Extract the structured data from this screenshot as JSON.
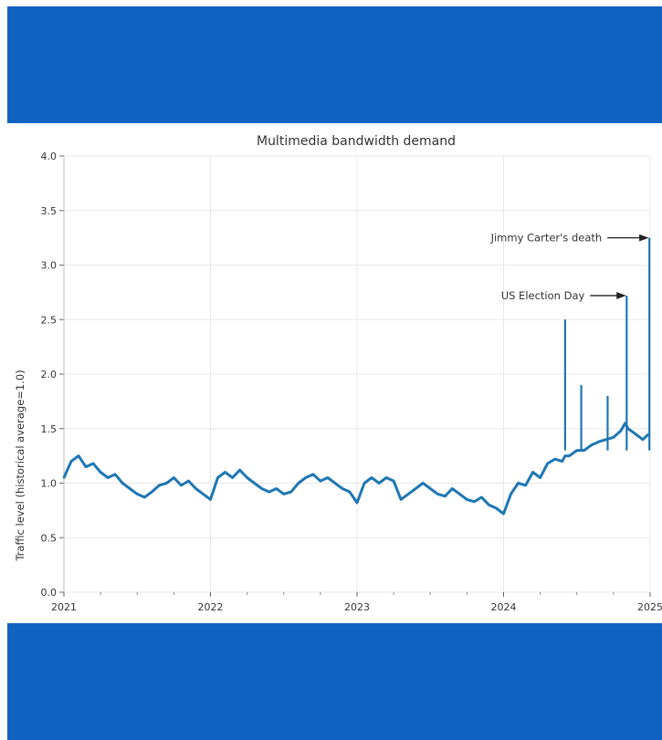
{
  "chart_data": {
    "type": "line",
    "title": "Multimedia bandwidth demand",
    "xlabel": "",
    "ylabel": "Traffic level (historical average=1.0)",
    "xlim": [
      2021,
      2025
    ],
    "ylim": [
      0,
      4.0
    ],
    "x_ticks": [
      "2021",
      "2022",
      "2023",
      "2024",
      "2025"
    ],
    "y_ticks": [
      "0.0",
      "0.5",
      "1.0",
      "1.5",
      "2.0",
      "2.5",
      "3.0",
      "3.5",
      "4.0"
    ],
    "grid": true,
    "series": [
      {
        "color": "#1f77b4",
        "x": [
          2021.0,
          2021.05,
          2021.1,
          2021.15,
          2021.2,
          2021.25,
          2021.3,
          2021.35,
          2021.4,
          2021.45,
          2021.5,
          2021.55,
          2021.6,
          2021.65,
          2021.7,
          2021.75,
          2021.8,
          2021.85,
          2021.9,
          2021.95,
          2022.0,
          2022.05,
          2022.1,
          2022.15,
          2022.2,
          2022.25,
          2022.3,
          2022.35,
          2022.4,
          2022.45,
          2022.5,
          2022.55,
          2022.6,
          2022.65,
          2022.7,
          2022.75,
          2022.8,
          2022.85,
          2022.9,
          2022.95,
          2023.0,
          2023.05,
          2023.1,
          2023.15,
          2023.2,
          2023.25,
          2023.3,
          2023.35,
          2023.4,
          2023.45,
          2023.5,
          2023.55,
          2023.6,
          2023.65,
          2023.7,
          2023.75,
          2023.8,
          2023.85,
          2023.9,
          2023.95,
          2024.0,
          2024.05,
          2024.1,
          2024.15,
          2024.2,
          2024.25,
          2024.3,
          2024.35,
          2024.4,
          2024.42,
          2024.45,
          2024.5,
          2024.55,
          2024.6,
          2024.65,
          2024.7,
          2024.75,
          2024.8,
          2024.83,
          2024.85,
          2024.9,
          2024.95,
          2024.99
        ],
        "y": [
          1.05,
          1.2,
          1.25,
          1.15,
          1.18,
          1.1,
          1.05,
          1.08,
          1.0,
          0.95,
          0.9,
          0.87,
          0.92,
          0.98,
          1.0,
          1.05,
          0.98,
          1.02,
          0.95,
          0.9,
          0.85,
          1.05,
          1.1,
          1.05,
          1.12,
          1.05,
          1.0,
          0.95,
          0.92,
          0.95,
          0.9,
          0.92,
          1.0,
          1.05,
          1.08,
          1.02,
          1.05,
          1.0,
          0.95,
          0.92,
          0.82,
          1.0,
          1.05,
          1.0,
          1.05,
          1.02,
          0.85,
          0.9,
          0.95,
          1.0,
          0.95,
          0.9,
          0.88,
          0.95,
          0.9,
          0.85,
          0.83,
          0.87,
          0.8,
          0.77,
          0.72,
          0.9,
          1.0,
          0.98,
          1.1,
          1.05,
          1.18,
          1.22,
          1.2,
          1.25,
          1.25,
          1.3,
          1.3,
          1.35,
          1.38,
          1.4,
          1.42,
          1.48,
          1.55,
          1.5,
          1.45,
          1.4,
          1.45
        ]
      }
    ],
    "spikes": [
      {
        "x": 2024.42,
        "y": 2.5
      },
      {
        "x": 2024.53,
        "y": 1.9
      },
      {
        "x": 2024.71,
        "y": 1.8
      },
      {
        "x": 2024.84,
        "y": 2.72
      },
      {
        "x": 2024.995,
        "y": 3.25
      }
    ],
    "annotations": [
      {
        "text": "US Election Day",
        "x": 2024.84,
        "y": 2.72
      },
      {
        "text": "Jimmy Carter's death",
        "x": 2024.995,
        "y": 3.25
      }
    ]
  }
}
